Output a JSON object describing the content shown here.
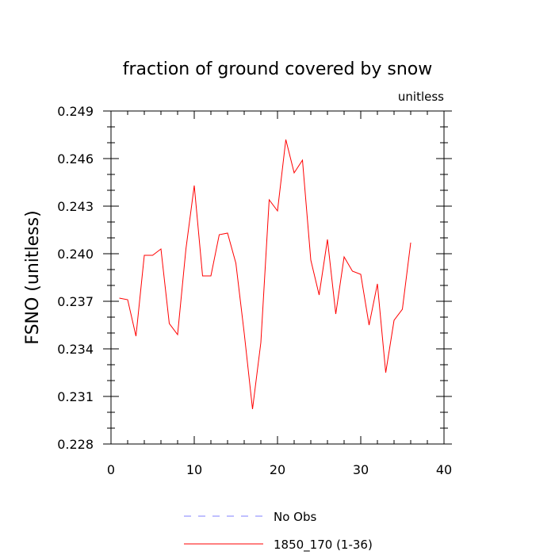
{
  "chart_data": {
    "type": "line",
    "title": "fraction of ground covered by snow",
    "units_label": "unitless",
    "ylabel": "FSNO  (unitless)",
    "xlabel": "",
    "xlim": [
      0,
      40
    ],
    "ylim": [
      0.228,
      0.249
    ],
    "x_ticks": [
      0,
      10,
      20,
      30,
      40
    ],
    "y_ticks": [
      0.228,
      0.231,
      0.234,
      0.237,
      0.24,
      0.243,
      0.246,
      0.249
    ],
    "y_tick_labels": [
      "0.228",
      "0.231",
      "0.234",
      "0.237",
      "0.240",
      "0.243",
      "0.246",
      "0.249"
    ],
    "grid": false,
    "legend_position": "bottom",
    "series": [
      {
        "name": "No Obs",
        "color": "#8080ff",
        "dash": "dashed",
        "x": [],
        "values": []
      },
      {
        "name": "1850_170 (1-36)",
        "color": "#ff0000",
        "dash": "solid",
        "x": [
          1,
          2,
          3,
          4,
          5,
          6,
          7,
          8,
          9,
          10,
          11,
          12,
          13,
          14,
          15,
          16,
          17,
          18,
          19,
          20,
          21,
          22,
          23,
          24,
          25,
          26,
          27,
          28,
          29,
          30,
          31,
          32,
          33,
          34,
          35,
          36
        ],
        "values": [
          0.2372,
          0.2371,
          0.2348,
          0.2399,
          0.2399,
          0.2403,
          0.2356,
          0.2349,
          0.2403,
          0.2443,
          0.2386,
          0.2386,
          0.2412,
          0.2413,
          0.2394,
          0.235,
          0.2302,
          0.2344,
          0.2434,
          0.2427,
          0.2472,
          0.2451,
          0.2459,
          0.2396,
          0.2374,
          0.2409,
          0.2362,
          0.2398,
          0.2389,
          0.2387,
          0.2355,
          0.2381,
          0.2325,
          0.2358,
          0.2365,
          0.2407
        ]
      }
    ]
  }
}
